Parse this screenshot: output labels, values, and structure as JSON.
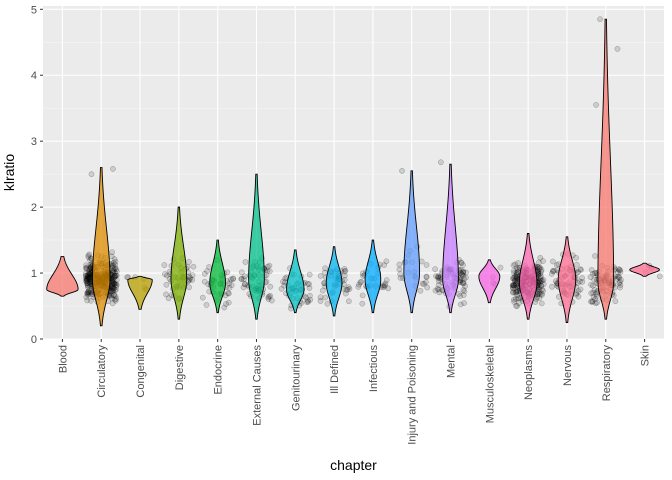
{
  "chart_data": {
    "type": "violin",
    "xlabel": "chapter",
    "ylabel": "klratio",
    "ylim": [
      0,
      5.05
    ],
    "yticks": [
      0,
      1,
      2,
      3,
      4,
      5
    ],
    "grid": true,
    "jitter_points": true,
    "categories": [
      "Blood",
      "Circulatory",
      "Congenital",
      "Digestive",
      "Endocrine",
      "External Causes",
      "Genitourinary",
      "Ill Defined",
      "Infectious",
      "Injury and Poisoning",
      "Mental",
      "Musculoskeletal",
      "Neoplasms",
      "Nervous",
      "Respiratory",
      "Skin"
    ],
    "colors": [
      "#F8766D",
      "#DE8C00",
      "#B79F00",
      "#7CAE00",
      "#00BA38",
      "#00C08B",
      "#00BFC4",
      "#00B4F0",
      "#00A9FF",
      "#619CFF",
      "#C77CFF",
      "#F564E3",
      "#FF64B0",
      "#FF6C91",
      "#F8766D",
      "#FF6C91"
    ],
    "series": [
      {
        "name": "Blood",
        "min": 0.65,
        "max": 1.25,
        "peak": 0.75,
        "width": 0.9,
        "npoints": 0
      },
      {
        "name": "Circulatory",
        "min": 0.2,
        "max": 2.6,
        "peak": 0.9,
        "width": 0.5,
        "npoints": 320
      },
      {
        "name": "Congenital",
        "min": 0.45,
        "max": 0.95,
        "peak": 0.9,
        "width": 0.7,
        "npoints": 6
      },
      {
        "name": "Digestive",
        "min": 0.3,
        "max": 2.0,
        "peak": 0.9,
        "width": 0.45,
        "npoints": 45
      },
      {
        "name": "Endocrine",
        "min": 0.4,
        "max": 1.5,
        "peak": 0.85,
        "width": 0.45,
        "npoints": 40
      },
      {
        "name": "External Causes",
        "min": 0.3,
        "max": 2.5,
        "peak": 0.9,
        "width": 0.45,
        "npoints": 60
      },
      {
        "name": "Genitourinary",
        "min": 0.4,
        "max": 1.35,
        "peak": 0.75,
        "width": 0.5,
        "npoints": 45
      },
      {
        "name": "Ill Defined",
        "min": 0.35,
        "max": 1.4,
        "peak": 0.85,
        "width": 0.45,
        "npoints": 45
      },
      {
        "name": "Infectious",
        "min": 0.4,
        "max": 1.5,
        "peak": 0.9,
        "width": 0.45,
        "npoints": 30
      },
      {
        "name": "Injury and Poisoning",
        "min": 0.4,
        "max": 2.55,
        "peak": 1.0,
        "width": 0.45,
        "npoints": 25
      },
      {
        "name": "Mental",
        "min": 0.4,
        "max": 2.65,
        "peak": 0.9,
        "width": 0.45,
        "npoints": 80
      },
      {
        "name": "Musculoskeletal",
        "min": 0.55,
        "max": 1.2,
        "peak": 0.95,
        "width": 0.6,
        "npoints": 4
      },
      {
        "name": "Neoplasms",
        "min": 0.3,
        "max": 1.6,
        "peak": 0.85,
        "width": 0.5,
        "npoints": 220
      },
      {
        "name": "Nervous",
        "min": 0.25,
        "max": 1.55,
        "peak": 0.9,
        "width": 0.5,
        "npoints": 70
      },
      {
        "name": "Respiratory",
        "min": 0.3,
        "max": 4.85,
        "peak": 0.85,
        "width": 0.45,
        "npoints": 90
      },
      {
        "name": "Skin",
        "min": 0.95,
        "max": 1.15,
        "peak": 1.05,
        "width": 0.85,
        "npoints": 4
      }
    ],
    "outliers": [
      {
        "category": "Circulatory",
        "values": [
          2.5,
          2.58
        ]
      },
      {
        "category": "Respiratory",
        "values": [
          3.55,
          4.4,
          4.85
        ]
      },
      {
        "category": "Mental",
        "values": [
          2.68
        ]
      },
      {
        "category": "Injury and Poisoning",
        "values": [
          2.55
        ]
      }
    ]
  }
}
